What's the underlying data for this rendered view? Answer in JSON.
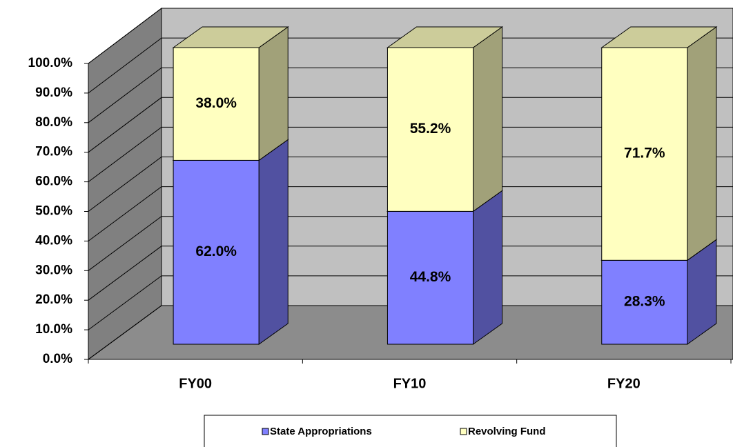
{
  "chart_data": {
    "type": "bar",
    "stacked": true,
    "three_d": true,
    "categories": [
      "FY00",
      "FY10",
      "FY20"
    ],
    "series": [
      {
        "name": "State Appropriations",
        "color": "#8080ff",
        "values": [
          62.0,
          44.8,
          28.3
        ],
        "value_labels": [
          "62.0%",
          "44.8%",
          "28.3%"
        ]
      },
      {
        "name": "Revolving Fund",
        "color": "#ffffc0",
        "values": [
          38.0,
          55.2,
          71.7
        ],
        "value_labels": [
          "38.0%",
          "55.2%",
          "71.7%"
        ]
      }
    ],
    "ylim": [
      0,
      100
    ],
    "yticks": [
      {
        "value": 0,
        "label": "0.0%"
      },
      {
        "value": 10,
        "label": "10.0%"
      },
      {
        "value": 20,
        "label": "20.0%"
      },
      {
        "value": 30,
        "label": "30.0%"
      },
      {
        "value": 40,
        "label": "40.0%"
      },
      {
        "value": 50,
        "label": "50.0%"
      },
      {
        "value": 60,
        "label": "60.0%"
      },
      {
        "value": 70,
        "label": "70.0%"
      },
      {
        "value": 80,
        "label": "80.0%"
      },
      {
        "value": 90,
        "label": "90.0%"
      },
      {
        "value": 100,
        "label": "100.0%"
      }
    ],
    "grid": true,
    "legend": "bottom"
  }
}
